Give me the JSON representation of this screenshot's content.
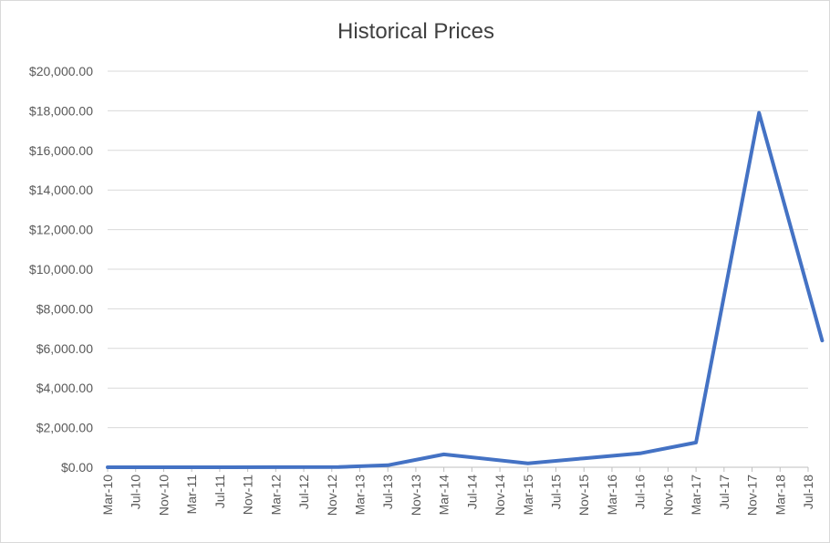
{
  "chart_data": {
    "type": "line",
    "title": "Historical Prices",
    "xlabel": "",
    "ylabel": "",
    "ylim": [
      0,
      20000
    ],
    "y_tick_labels": [
      "$0.00",
      "$2,000.00",
      "$4,000.00",
      "$6,000.00",
      "$8,000.00",
      "$10,000.00",
      "$12,000.00",
      "$14,000.00",
      "$16,000.00",
      "$18,000.00",
      "$20,000.00"
    ],
    "categories": [
      "Mar-10",
      "Jul-10",
      "Nov-10",
      "Mar-11",
      "Jul-11",
      "Nov-11",
      "Mar-12",
      "Jul-12",
      "Nov-12",
      "Mar-13",
      "Jul-13",
      "Nov-13",
      "Mar-14",
      "Jul-14",
      "Nov-14",
      "Mar-15",
      "Jul-15",
      "Nov-15",
      "Mar-16",
      "Jul-16",
      "Nov-16",
      "Mar-17",
      "Jul-17",
      "Nov-17",
      "Mar-18",
      "Jul-18"
    ],
    "grid": true,
    "colors": {
      "line": "#4472c4",
      "grid": "#d9d9d9",
      "axis": "#bfbfbf"
    },
    "series": [
      {
        "x": [
          "Mar-10",
          "Mar-11",
          "Mar-12",
          "Dec-12",
          "Jul-13",
          "Mar-14",
          "Mar-15",
          "Nov-15",
          "Jul-16",
          "Mar-17",
          "Dec-17",
          "Sep-18"
        ],
        "values": [
          0,
          1,
          5,
          13,
          100,
          650,
          200,
          450,
          700,
          1250,
          17900,
          6400
        ]
      }
    ]
  }
}
